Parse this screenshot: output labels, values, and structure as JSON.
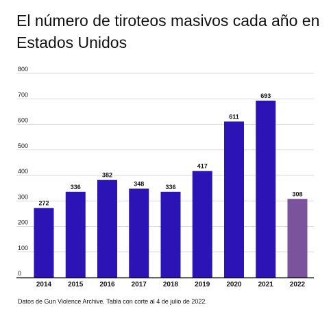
{
  "title": "El número de tiroteos masivos cada año en Estados Unidos",
  "note": "Datos de Gun Violence Archive. Tabla con corte al 4 de julio de 2022.",
  "colors": {
    "primary_bar": "#2b13b6",
    "highlight_bar": "#7a539c",
    "grid": "#d9d9d9",
    "axis": "#111111"
  },
  "chart_data": {
    "type": "bar",
    "categories": [
      "2014",
      "2015",
      "2016",
      "2017",
      "2018",
      "2019",
      "2020",
      "2021",
      "2022"
    ],
    "values": [
      272,
      336,
      382,
      348,
      336,
      417,
      611,
      693,
      308
    ],
    "value_labels": [
      "272",
      "336",
      "382",
      "348",
      "336",
      "417",
      "611",
      "693",
      "308"
    ],
    "highlight_categories": [
      "2022"
    ],
    "yticks": [
      "0",
      "100",
      "200",
      "300",
      "400",
      "500",
      "600",
      "700",
      "800"
    ],
    "ylim": [
      0,
      800
    ],
    "grid": true,
    "xlabel": "",
    "ylabel": ""
  }
}
